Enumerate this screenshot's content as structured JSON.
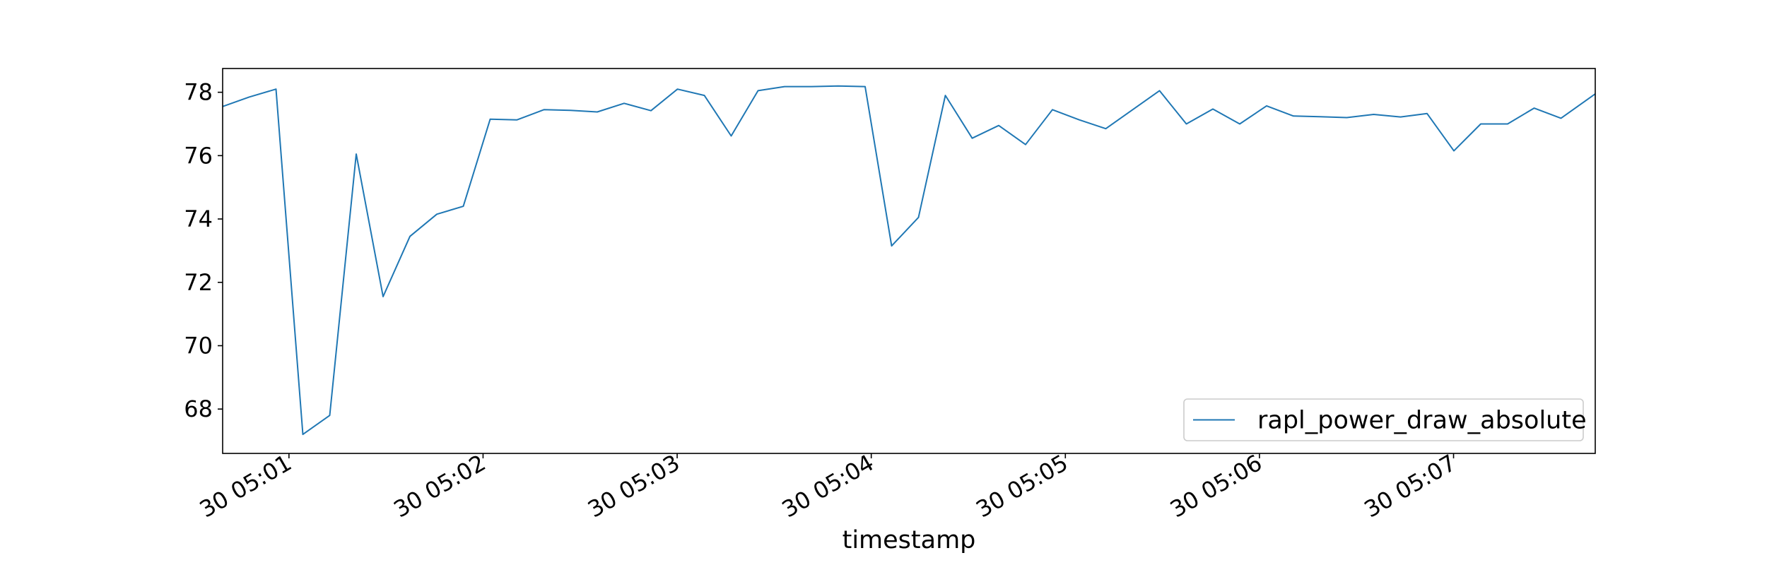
{
  "chart_data": {
    "type": "line",
    "title": "",
    "xlabel": "timestamp",
    "ylabel": "",
    "x_unit": "time (day 30, HH:MM:SS)",
    "xlim": [
      "05:00:39.5",
      "05:07:43.8"
    ],
    "ylim": [
      66.6,
      78.75
    ],
    "x_ticks": [
      {
        "time": "05:01:00",
        "label": "30 05:01"
      },
      {
        "time": "05:02:00",
        "label": "30 05:02"
      },
      {
        "time": "05:03:00",
        "label": "30 05:03"
      },
      {
        "time": "05:04:00",
        "label": "30 05:04"
      },
      {
        "time": "05:05:00",
        "label": "30 05:05"
      },
      {
        "time": "05:06:00",
        "label": "30 05:06"
      },
      {
        "time": "05:07:00",
        "label": "30 05:07"
      }
    ],
    "y_ticks": [
      {
        "value": 68,
        "label": "68"
      },
      {
        "value": 70,
        "label": "70"
      },
      {
        "value": 72,
        "label": "72"
      },
      {
        "value": 74,
        "label": "74"
      },
      {
        "value": 76,
        "label": "76"
      },
      {
        "value": 78,
        "label": "78"
      }
    ],
    "grid": false,
    "legend": {
      "position": "lower-right"
    },
    "series": [
      {
        "name": "rapl_power_draw_absolute",
        "color": "#1f77b4",
        "x": [
          "05:00:39.5",
          "05:00:47.7",
          "05:00:56.0",
          "05:01:04.3",
          "05:01:12.6",
          "05:01:20.8",
          "05:01:29.1",
          "05:01:37.4",
          "05:01:45.7",
          "05:01:53.9",
          "05:02:02.2",
          "05:02:10.5",
          "05:02:18.8",
          "05:02:27.0",
          "05:02:35.3",
          "05:02:43.6",
          "05:02:51.9",
          "05:03:00.1",
          "05:03:08.4",
          "05:03:16.7",
          "05:03:25.0",
          "05:03:33.2",
          "05:03:41.5",
          "05:03:49.8",
          "05:03:58.1",
          "05:04:06.3",
          "05:04:14.6",
          "05:04:22.9",
          "05:04:31.2",
          "05:04:39.4",
          "05:04:47.7",
          "05:04:56.0",
          "05:05:04.3",
          "05:05:12.5",
          "05:05:20.8",
          "05:05:29.1",
          "05:05:37.4",
          "05:05:45.6",
          "05:05:53.9",
          "05:06:02.2",
          "05:06:10.5",
          "05:06:18.7",
          "05:06:27.0",
          "05:06:35.3",
          "05:06:43.6",
          "05:06:51.8",
          "05:07:00.1",
          "05:07:08.4",
          "05:07:16.7",
          "05:07:24.9",
          "05:07:33.2",
          "05:07:43.8"
        ],
        "y": [
          77.55,
          77.85,
          78.1,
          67.2,
          67.8,
          76.05,
          71.55,
          73.45,
          74.15,
          74.4,
          77.15,
          77.13,
          77.45,
          77.43,
          77.38,
          77.65,
          77.42,
          78.1,
          77.9,
          76.62,
          78.05,
          78.18,
          78.18,
          78.2,
          78.18,
          73.15,
          74.05,
          77.9,
          76.55,
          76.95,
          76.35,
          77.45,
          77.13,
          76.85,
          77.45,
          78.05,
          77.0,
          77.47,
          77.0,
          77.57,
          77.25,
          77.23,
          77.2,
          77.3,
          77.22,
          77.33,
          76.15,
          77.0,
          77.0,
          77.5,
          77.18,
          77.95
        ]
      }
    ]
  }
}
